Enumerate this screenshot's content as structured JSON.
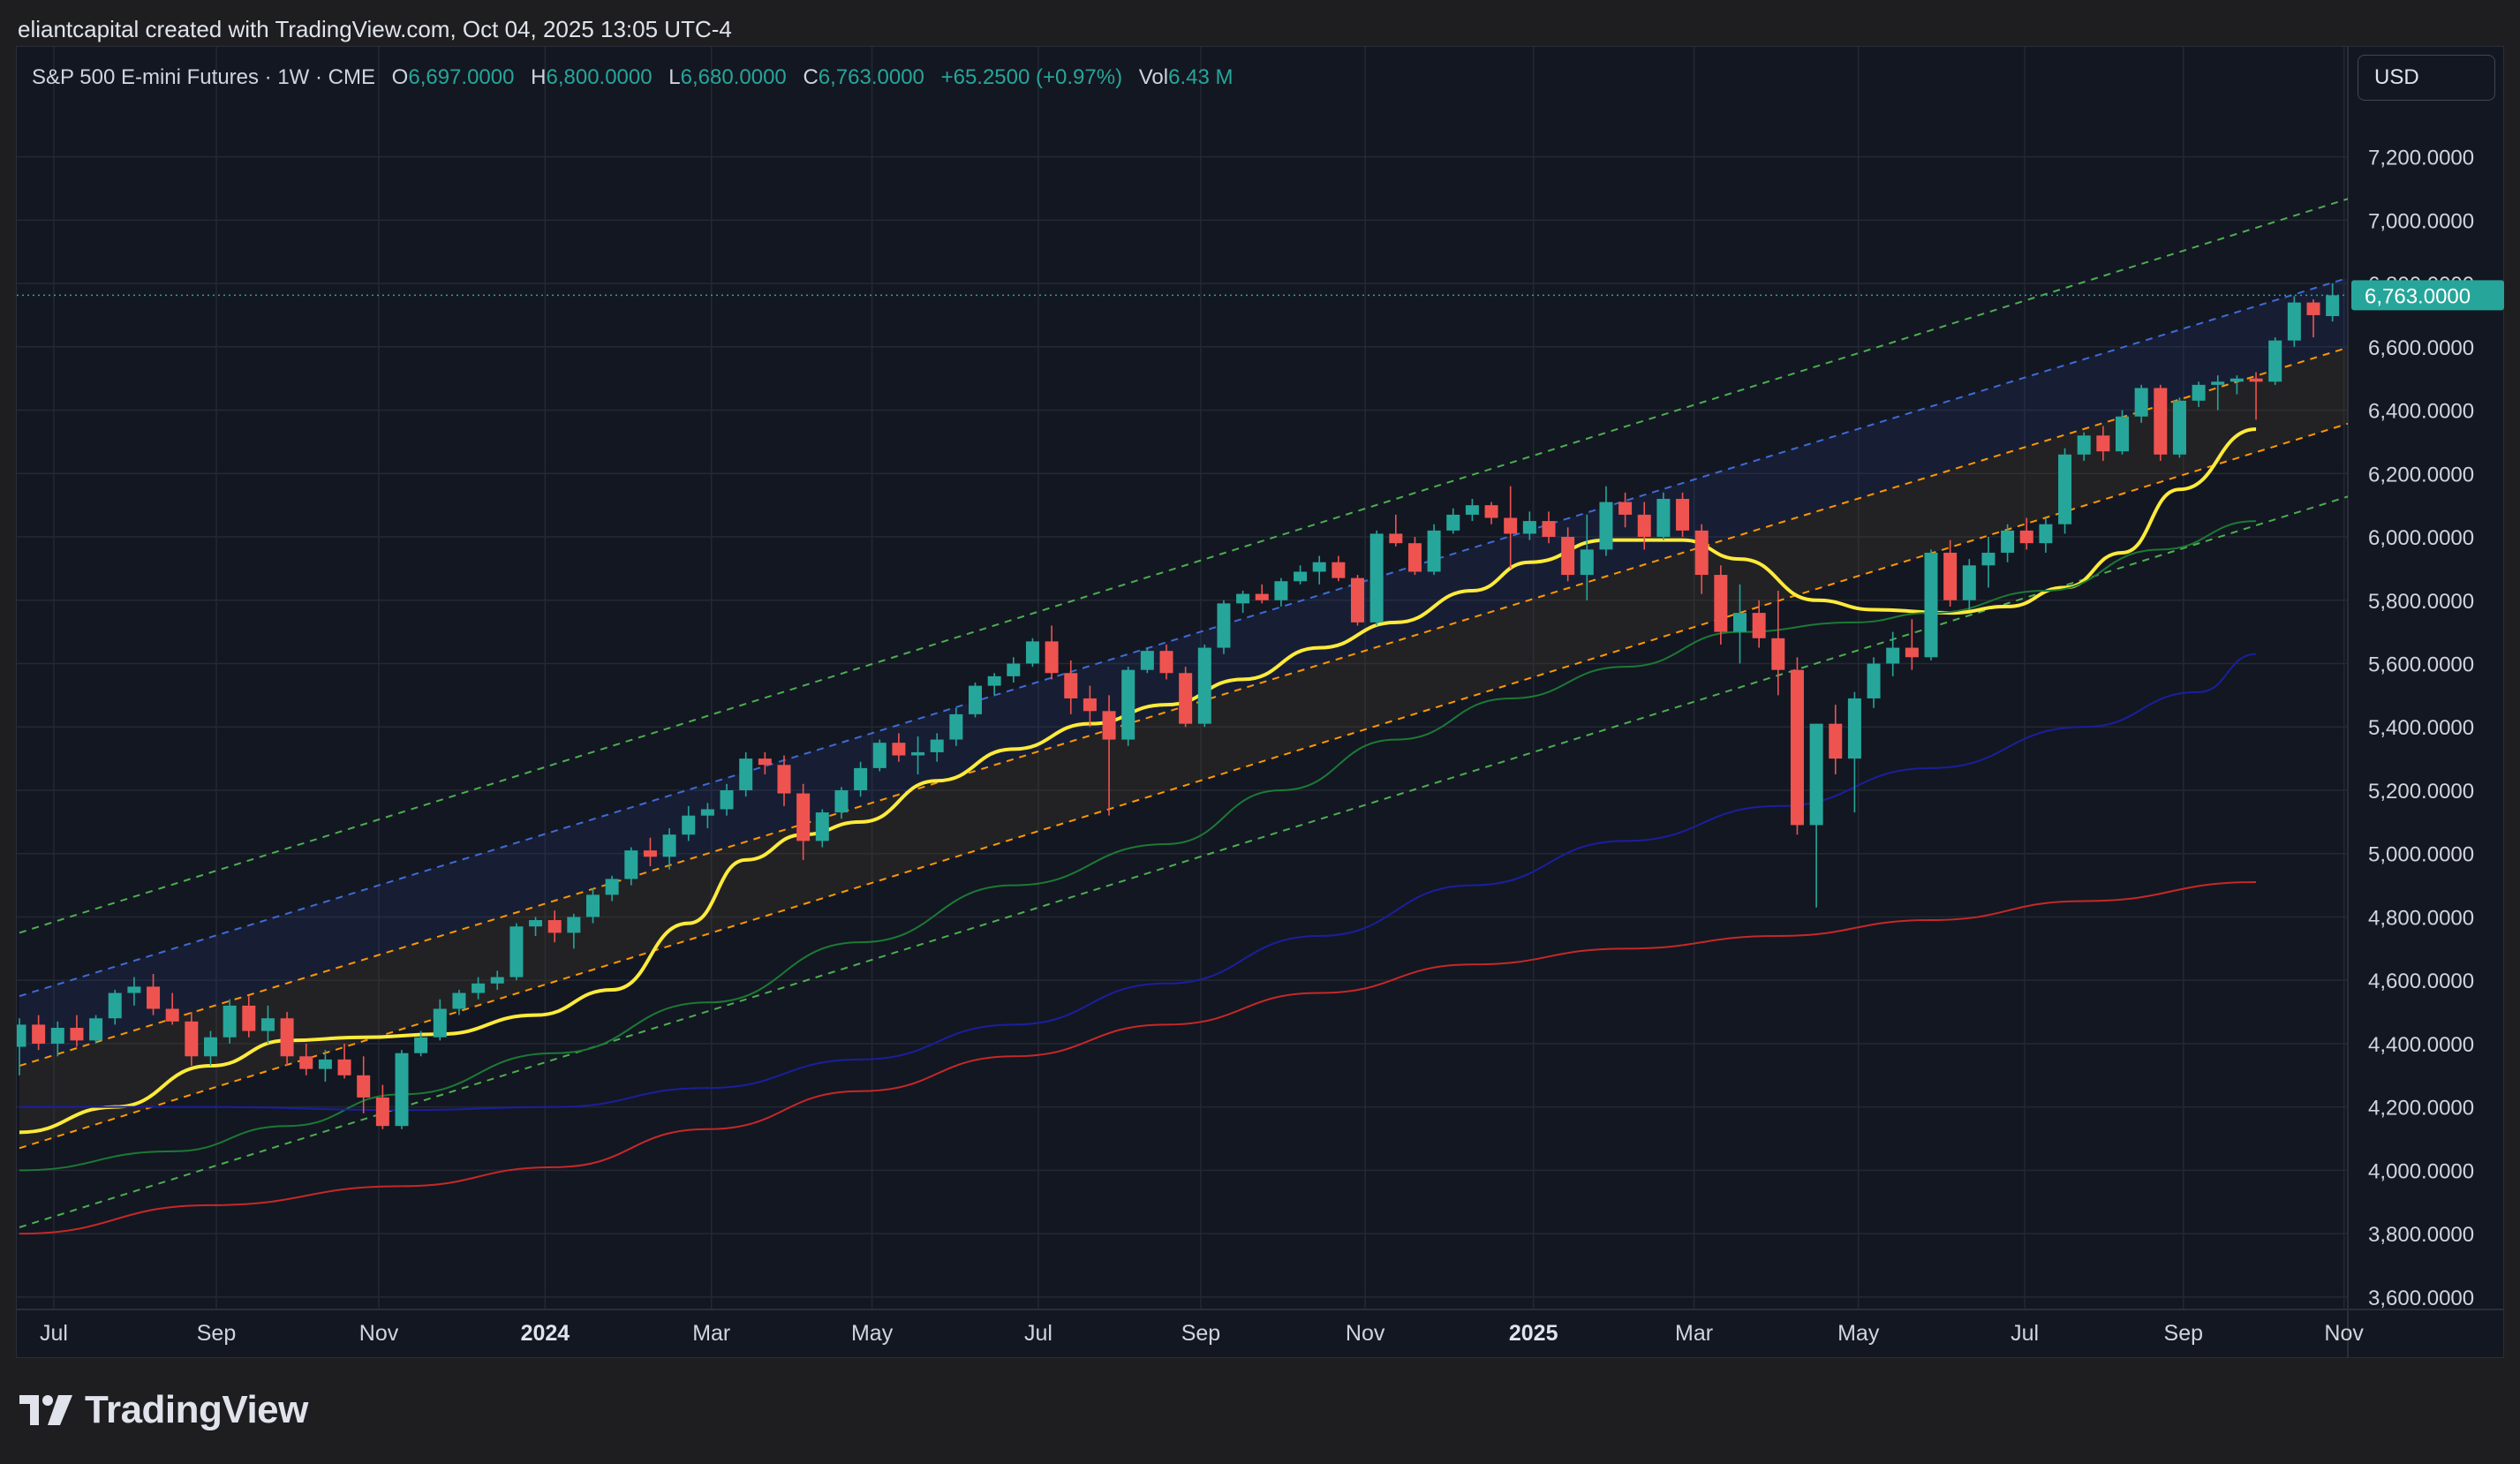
{
  "header": {
    "attribution": "eliantcapital created with TradingView.com, Oct 04, 2025 13:05 UTC-4"
  },
  "legend": {
    "symbol": "S&P 500 E-mini Futures · 1W · CME",
    "open_label": "O",
    "open": "6,697.0000",
    "high_label": "H",
    "high": "6,800.0000",
    "low_label": "L",
    "low": "6,680.0000",
    "close_label": "C",
    "close": "6,763.0000",
    "change": "+65.2500 (+0.97%)",
    "vol_label": "Vol",
    "vol": "6.43 M"
  },
  "currency_button": {
    "label": "USD"
  },
  "brand": {
    "name": "TradingView",
    "icon": "tradingview-logo-icon"
  },
  "colors": {
    "background": "#131722",
    "grid": "#242833",
    "up": "#26a69a",
    "down": "#ef5350",
    "sma_fast": "#ffeb3b",
    "sma_mid": "#1b7a34",
    "sma_slow": "#1a1f9e",
    "sma_long": "#c62828",
    "channel_outer": "#4caf50",
    "channel_upper": "#3f6bd6",
    "channel_inner": "#ff9800"
  },
  "chart_data": {
    "type": "candlestick",
    "symbol": "S&P 500 E-mini Futures",
    "timeframe": "1W",
    "ylim": [
      3600,
      7300
    ],
    "y_ticks": [
      {
        "value": 3600,
        "label": "3,600.0000"
      },
      {
        "value": 3800,
        "label": "3,800.0000"
      },
      {
        "value": 4000,
        "label": "4,000.0000"
      },
      {
        "value": 4200,
        "label": "4,200.0000"
      },
      {
        "value": 4400,
        "label": "4,400.0000"
      },
      {
        "value": 4600,
        "label": "4,600.0000"
      },
      {
        "value": 4800,
        "label": "4,800.0000"
      },
      {
        "value": 5000,
        "label": "5,000.0000"
      },
      {
        "value": 5200,
        "label": "5,200.0000"
      },
      {
        "value": 5400,
        "label": "5,400.0000"
      },
      {
        "value": 5600,
        "label": "5,600.0000"
      },
      {
        "value": 5800,
        "label": "5,800.0000"
      },
      {
        "value": 6000,
        "label": "6,000.0000"
      },
      {
        "value": 6200,
        "label": "6,200.0000"
      },
      {
        "value": 6400,
        "label": "6,400.0000"
      },
      {
        "value": 6600,
        "label": "6,600.0000"
      },
      {
        "value": 6800,
        "label": "6,800.0000"
      },
      {
        "value": 7000,
        "label": "7,000.0000"
      },
      {
        "value": 7200,
        "label": "7,200.0000"
      }
    ],
    "x_ticks": [
      {
        "index": 1.8,
        "label": "Jul",
        "bold": false
      },
      {
        "index": 10.3,
        "label": "Sep",
        "bold": false
      },
      {
        "index": 18.8,
        "label": "Nov",
        "bold": false
      },
      {
        "index": 27.5,
        "label": "2024",
        "bold": true
      },
      {
        "index": 36.2,
        "label": "Mar",
        "bold": false
      },
      {
        "index": 44.6,
        "label": "May",
        "bold": false
      },
      {
        "index": 53.3,
        "label": "Jul",
        "bold": false
      },
      {
        "index": 61.8,
        "label": "Sep",
        "bold": false
      },
      {
        "index": 70.4,
        "label": "Nov",
        "bold": false
      },
      {
        "index": 79.2,
        "label": "2025",
        "bold": true
      },
      {
        "index": 87.6,
        "label": "Mar",
        "bold": false
      },
      {
        "index": 96.2,
        "label": "May",
        "bold": false
      },
      {
        "index": 104.9,
        "label": "Jul",
        "bold": false
      },
      {
        "index": 113.2,
        "label": "Sep",
        "bold": false
      },
      {
        "index": 121.6,
        "label": "Nov",
        "bold": false
      }
    ],
    "last_price": {
      "value": 6763,
      "label": "6,763.0000"
    },
    "channels": [
      {
        "name": "outer-upper",
        "from": [
          0,
          4750
        ],
        "to": [
          123,
          7090
        ],
        "style": "dashed",
        "color": "#4caf50"
      },
      {
        "name": "upper",
        "from": [
          0,
          4550
        ],
        "to": [
          123,
          6840
        ],
        "style": "dashed",
        "color": "#3f6bd6"
      },
      {
        "name": "mid-upper",
        "from": [
          0,
          4330
        ],
        "to": [
          123,
          6620
        ],
        "style": "dashed",
        "color": "#ff9800"
      },
      {
        "name": "mid-lower",
        "from": [
          0,
          4070
        ],
        "to": [
          123,
          6380
        ],
        "style": "dashed",
        "color": "#ff9800"
      },
      {
        "name": "outer-lower",
        "from": [
          0,
          3820
        ],
        "to": [
          123,
          6150
        ],
        "style": "dashed",
        "color": "#4caf50"
      }
    ],
    "bands": [
      {
        "upper": "upper",
        "lower": "mid-upper",
        "color": "#2a3a78",
        "opacity": 0.22
      },
      {
        "upper": "mid-upper",
        "lower": "mid-lower",
        "color": "#4a3f30",
        "opacity": 0.28
      }
    ],
    "moving_averages": [
      {
        "name": "sma-fast",
        "color": "#ffeb3b",
        "width": 4,
        "points": [
          [
            0,
            4120
          ],
          [
            5,
            4200
          ],
          [
            10,
            4330
          ],
          [
            14,
            4410
          ],
          [
            18,
            4420
          ],
          [
            22,
            4430
          ],
          [
            27,
            4490
          ],
          [
            31,
            4570
          ],
          [
            35,
            4780
          ],
          [
            38,
            4980
          ],
          [
            41,
            5060
          ],
          [
            44,
            5100
          ],
          [
            48,
            5230
          ],
          [
            52,
            5330
          ],
          [
            56,
            5410
          ],
          [
            60,
            5470
          ],
          [
            64,
            5550
          ],
          [
            68,
            5650
          ],
          [
            72,
            5730
          ],
          [
            76,
            5830
          ],
          [
            79,
            5920
          ],
          [
            83,
            5990
          ],
          [
            87,
            5990
          ],
          [
            90,
            5930
          ],
          [
            94,
            5800
          ],
          [
            97,
            5770
          ],
          [
            101,
            5760
          ],
          [
            104,
            5780
          ],
          [
            107,
            5840
          ],
          [
            110,
            5950
          ],
          [
            113,
            6150
          ],
          [
            117,
            6340
          ]
        ]
      },
      {
        "name": "sma-mid",
        "color": "#1b7a34",
        "width": 2,
        "points": [
          [
            0,
            4000
          ],
          [
            8,
            4060
          ],
          [
            14,
            4140
          ],
          [
            20,
            4240
          ],
          [
            28,
            4370
          ],
          [
            36,
            4530
          ],
          [
            44,
            4720
          ],
          [
            52,
            4900
          ],
          [
            60,
            5030
          ],
          [
            66,
            5200
          ],
          [
            72,
            5360
          ],
          [
            78,
            5490
          ],
          [
            84,
            5590
          ],
          [
            90,
            5700
          ],
          [
            96,
            5730
          ],
          [
            100,
            5760
          ],
          [
            106,
            5830
          ],
          [
            112,
            5960
          ],
          [
            117,
            6050
          ]
        ]
      },
      {
        "name": "sma-slow",
        "color": "#1a1f9e",
        "width": 2,
        "points": [
          [
            0,
            4200
          ],
          [
            10,
            4200
          ],
          [
            20,
            4190
          ],
          [
            28,
            4200
          ],
          [
            36,
            4260
          ],
          [
            44,
            4350
          ],
          [
            52,
            4460
          ],
          [
            60,
            4590
          ],
          [
            68,
            4740
          ],
          [
            76,
            4900
          ],
          [
            84,
            5040
          ],
          [
            92,
            5150
          ],
          [
            100,
            5270
          ],
          [
            108,
            5400
          ],
          [
            114,
            5510
          ],
          [
            117,
            5630
          ]
        ]
      },
      {
        "name": "sma-long",
        "color": "#c62828",
        "width": 2,
        "points": [
          [
            0,
            3800
          ],
          [
            10,
            3890
          ],
          [
            20,
            3950
          ],
          [
            28,
            4010
          ],
          [
            36,
            4130
          ],
          [
            44,
            4250
          ],
          [
            52,
            4360
          ],
          [
            60,
            4460
          ],
          [
            68,
            4560
          ],
          [
            76,
            4650
          ],
          [
            84,
            4700
          ],
          [
            92,
            4740
          ],
          [
            100,
            4790
          ],
          [
            108,
            4850
          ],
          [
            117,
            4910
          ]
        ]
      }
    ],
    "candles": [
      [
        4390,
        4480,
        4300,
        4460
      ],
      [
        4460,
        4490,
        4380,
        4400
      ],
      [
        4400,
        4470,
        4360,
        4450
      ],
      [
        4450,
        4490,
        4390,
        4410
      ],
      [
        4410,
        4490,
        4400,
        4480
      ],
      [
        4480,
        4570,
        4460,
        4560
      ],
      [
        4560,
        4610,
        4520,
        4580
      ],
      [
        4580,
        4620,
        4490,
        4510
      ],
      [
        4510,
        4560,
        4460,
        4470
      ],
      [
        4470,
        4500,
        4330,
        4360
      ],
      [
        4360,
        4440,
        4330,
        4420
      ],
      [
        4420,
        4540,
        4400,
        4520
      ],
      [
        4520,
        4550,
        4420,
        4440
      ],
      [
        4440,
        4520,
        4400,
        4480
      ],
      [
        4480,
        4500,
        4330,
        4360
      ],
      [
        4360,
        4400,
        4300,
        4320
      ],
      [
        4320,
        4380,
        4280,
        4350
      ],
      [
        4350,
        4400,
        4290,
        4300
      ],
      [
        4300,
        4360,
        4180,
        4230
      ],
      [
        4230,
        4270,
        4130,
        4140
      ],
      [
        4140,
        4380,
        4130,
        4370
      ],
      [
        4370,
        4440,
        4360,
        4420
      ],
      [
        4420,
        4540,
        4410,
        4510
      ],
      [
        4510,
        4570,
        4490,
        4560
      ],
      [
        4560,
        4610,
        4540,
        4590
      ],
      [
        4590,
        4630,
        4570,
        4610
      ],
      [
        4610,
        4780,
        4600,
        4770
      ],
      [
        4770,
        4800,
        4740,
        4790
      ],
      [
        4790,
        4820,
        4720,
        4750
      ],
      [
        4750,
        4810,
        4700,
        4800
      ],
      [
        4800,
        4890,
        4780,
        4870
      ],
      [
        4870,
        4930,
        4850,
        4920
      ],
      [
        4920,
        5020,
        4900,
        5010
      ],
      [
        5010,
        5050,
        4960,
        4990
      ],
      [
        4990,
        5080,
        4950,
        5060
      ],
      [
        5060,
        5150,
        5040,
        5120
      ],
      [
        5120,
        5160,
        5080,
        5140
      ],
      [
        5140,
        5220,
        5120,
        5200
      ],
      [
        5200,
        5320,
        5180,
        5300
      ],
      [
        5300,
        5320,
        5250,
        5280
      ],
      [
        5280,
        5310,
        5150,
        5190
      ],
      [
        5190,
        5220,
        4980,
        5040
      ],
      [
        5040,
        5140,
        5020,
        5130
      ],
      [
        5130,
        5210,
        5110,
        5200
      ],
      [
        5200,
        5290,
        5180,
        5270
      ],
      [
        5270,
        5360,
        5260,
        5350
      ],
      [
        5350,
        5380,
        5290,
        5310
      ],
      [
        5310,
        5370,
        5250,
        5320
      ],
      [
        5320,
        5380,
        5290,
        5360
      ],
      [
        5360,
        5460,
        5340,
        5440
      ],
      [
        5440,
        5540,
        5430,
        5530
      ],
      [
        5530,
        5570,
        5500,
        5560
      ],
      [
        5560,
        5620,
        5540,
        5600
      ],
      [
        5600,
        5680,
        5590,
        5670
      ],
      [
        5670,
        5720,
        5550,
        5570
      ],
      [
        5570,
        5610,
        5440,
        5490
      ],
      [
        5490,
        5530,
        5400,
        5450
      ],
      [
        5450,
        5500,
        5120,
        5360
      ],
      [
        5360,
        5590,
        5340,
        5580
      ],
      [
        5580,
        5650,
        5570,
        5640
      ],
      [
        5640,
        5660,
        5550,
        5570
      ],
      [
        5570,
        5590,
        5400,
        5410
      ],
      [
        5410,
        5660,
        5400,
        5650
      ],
      [
        5650,
        5800,
        5630,
        5790
      ],
      [
        5790,
        5830,
        5760,
        5820
      ],
      [
        5820,
        5850,
        5790,
        5800
      ],
      [
        5800,
        5870,
        5780,
        5860
      ],
      [
        5860,
        5910,
        5850,
        5890
      ],
      [
        5890,
        5940,
        5850,
        5920
      ],
      [
        5920,
        5940,
        5860,
        5870
      ],
      [
        5870,
        5880,
        5720,
        5730
      ],
      [
        5730,
        6020,
        5720,
        6010
      ],
      [
        6010,
        6070,
        5970,
        5980
      ],
      [
        5980,
        6000,
        5880,
        5890
      ],
      [
        5890,
        6040,
        5880,
        6020
      ],
      [
        6020,
        6090,
        6010,
        6070
      ],
      [
        6070,
        6120,
        6050,
        6100
      ],
      [
        6100,
        6110,
        6040,
        6060
      ],
      [
        6060,
        6160,
        5900,
        6010
      ],
      [
        6010,
        6080,
        5990,
        6050
      ],
      [
        6050,
        6080,
        5980,
        6000
      ],
      [
        6000,
        6030,
        5860,
        5880
      ],
      [
        5880,
        6070,
        5800,
        5960
      ],
      [
        5960,
        6160,
        5940,
        6110
      ],
      [
        6110,
        6140,
        6030,
        6070
      ],
      [
        6070,
        6110,
        5960,
        6000
      ],
      [
        6000,
        6140,
        5990,
        6120
      ],
      [
        6120,
        6140,
        6000,
        6020
      ],
      [
        6020,
        6040,
        5820,
        5880
      ],
      [
        5880,
        5910,
        5660,
        5700
      ],
      [
        5700,
        5850,
        5600,
        5760
      ],
      [
        5760,
        5800,
        5650,
        5680
      ],
      [
        5680,
        5830,
        5500,
        5580
      ],
      [
        5580,
        5620,
        5060,
        5090
      ],
      [
        5090,
        5410,
        4830,
        5410
      ],
      [
        5410,
        5470,
        5250,
        5300
      ],
      [
        5300,
        5510,
        5130,
        5490
      ],
      [
        5490,
        5620,
        5460,
        5600
      ],
      [
        5600,
        5700,
        5560,
        5650
      ],
      [
        5650,
        5740,
        5580,
        5620
      ],
      [
        5620,
        5960,
        5610,
        5950
      ],
      [
        5950,
        5990,
        5780,
        5800
      ],
      [
        5800,
        5930,
        5770,
        5910
      ],
      [
        5910,
        6000,
        5840,
        5950
      ],
      [
        5950,
        6040,
        5920,
        6020
      ],
      [
        6020,
        6060,
        5960,
        5980
      ],
      [
        5980,
        6060,
        5950,
        6040
      ],
      [
        6040,
        6280,
        6010,
        6260
      ],
      [
        6260,
        6330,
        6240,
        6320
      ],
      [
        6320,
        6350,
        6240,
        6270
      ],
      [
        6270,
        6400,
        6260,
        6380
      ],
      [
        6380,
        6480,
        6360,
        6470
      ],
      [
        6470,
        6480,
        6240,
        6260
      ],
      [
        6260,
        6440,
        6250,
        6430
      ],
      [
        6430,
        6490,
        6410,
        6480
      ],
      [
        6480,
        6510,
        6400,
        6490
      ],
      [
        6490,
        6510,
        6450,
        6500
      ],
      [
        6500,
        6520,
        6370,
        6490
      ],
      [
        6490,
        6630,
        6480,
        6620
      ],
      [
        6620,
        6760,
        6600,
        6740
      ],
      [
        6740,
        6750,
        6630,
        6700
      ],
      [
        6697,
        6800,
        6680,
        6763
      ]
    ]
  }
}
